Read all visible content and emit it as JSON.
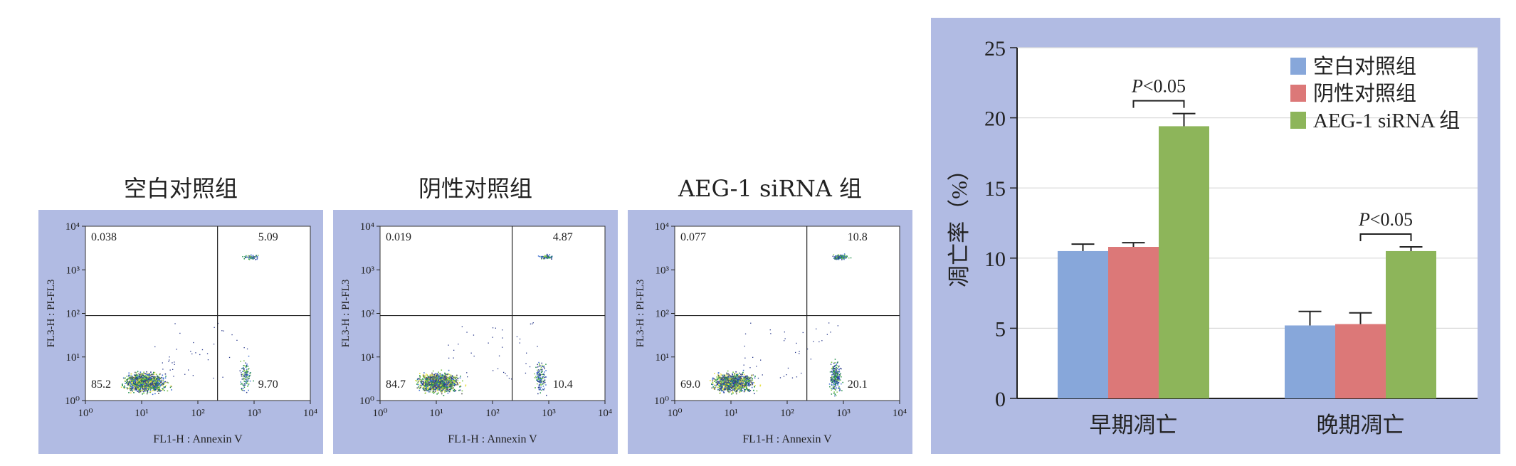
{
  "flow_panels": [
    {
      "title": "空白对照组",
      "xlabel": "FL1-H : Annexin V",
      "ylabel": "FL3-H : PI-FL3",
      "quadrants": {
        "upper_left": "0.038",
        "upper_right": "5.09",
        "lower_left": "85.2",
        "lower_right": "9.70"
      },
      "x_ticks": [
        "10⁰",
        "10¹",
        "10²",
        "10³",
        "10⁴"
      ],
      "y_ticks": [
        "10⁰",
        "10¹",
        "10²",
        "10³",
        "10⁴"
      ]
    },
    {
      "title": "阴性对照组",
      "xlabel": "FL1-H : Annexin V",
      "ylabel": "FL3-H : PI-FL3",
      "quadrants": {
        "upper_left": "0.019",
        "upper_right": "4.87",
        "lower_left": "84.7",
        "lower_right": "10.4"
      },
      "x_ticks": [
        "10⁰",
        "10¹",
        "10²",
        "10³",
        "10⁴"
      ],
      "y_ticks": [
        "10⁰",
        "10¹",
        "10²",
        "10³",
        "10⁴"
      ]
    },
    {
      "title": "AEG-1 siRNA 组",
      "xlabel": "FL1-H : Annexin V",
      "ylabel": "FL3-H : PI-FL3",
      "quadrants": {
        "upper_left": "0.077",
        "upper_right": "10.8",
        "lower_left": "69.0",
        "lower_right": "20.1"
      },
      "x_ticks": [
        "10⁰",
        "10¹",
        "10²",
        "10³",
        "10⁴"
      ],
      "y_ticks": [
        "10⁰",
        "10¹",
        "10²",
        "10³",
        "10⁴"
      ]
    }
  ],
  "chart_data": {
    "type": "bar",
    "categories": [
      "早期凋亡",
      "晚期凋亡"
    ],
    "series": [
      {
        "name": "空白对照组",
        "values": [
          10.5,
          5.2
        ],
        "errors": [
          0.5,
          1.0
        ],
        "color": "#87a7da"
      },
      {
        "name": "阴性对照组",
        "values": [
          10.8,
          5.3
        ],
        "errors": [
          0.3,
          0.8
        ],
        "color": "#dc7878"
      },
      {
        "name": "AEG-1 siRNA 组",
        "values": [
          19.4,
          10.5
        ],
        "errors": [
          0.9,
          0.3
        ],
        "color": "#8db55a"
      }
    ],
    "ylabel": "凋亡率（%）",
    "ylim": [
      0,
      25
    ],
    "yticks": [
      0,
      5,
      10,
      15,
      20,
      25
    ],
    "grid": true,
    "legend": "top-right",
    "annotations": [
      "P<0.05",
      "P<0.05"
    ]
  }
}
